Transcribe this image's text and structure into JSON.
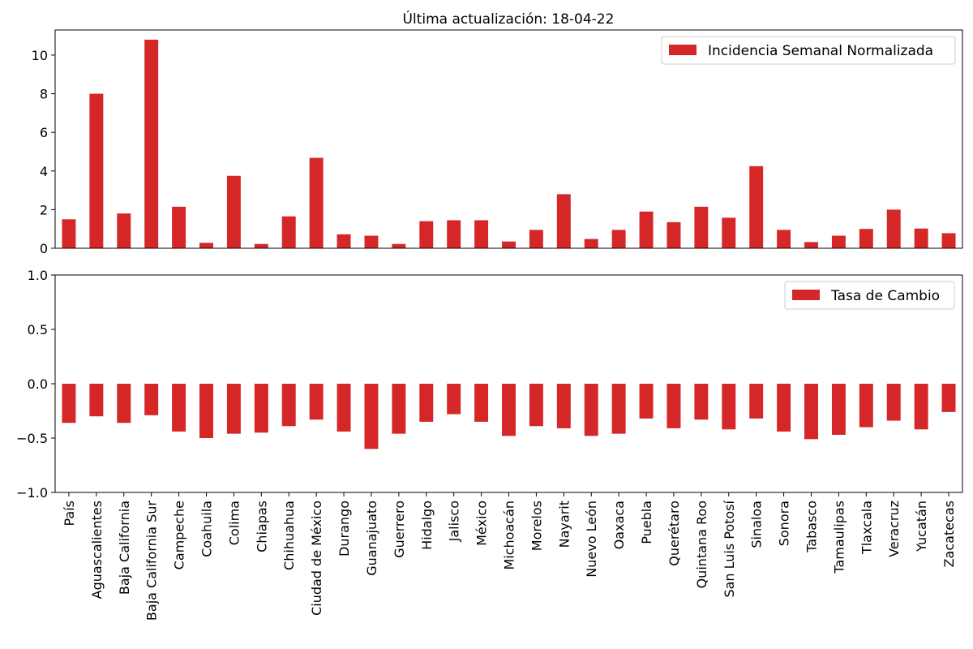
{
  "chart_data": [
    {
      "type": "bar",
      "title": "Última actualización: 18-04-22",
      "categories": [
        "País",
        "Aguascalientes",
        "Baja California",
        "Baja California Sur",
        "Campeche",
        "Coahuila",
        "Colima",
        "Chiapas",
        "Chihuahua",
        "Ciudad de México",
        "Durango",
        "Guanajuato",
        "Guerrero",
        "Hidalgo",
        "Jalisco",
        "México",
        "Michoacán",
        "Morelos",
        "Nayarit",
        "Nuevo León",
        "Oaxaca",
        "Puebla",
        "Querétaro",
        "Quintana Roo",
        "San Luis Potosí",
        "Sinaloa",
        "Sonora",
        "Tabasco",
        "Tamaulipas",
        "Tlaxcala",
        "Veracruz",
        "Yucatán",
        "Zacatecas"
      ],
      "series": [
        {
          "name": "Incidencia Semanal Normalizada",
          "values": [
            1.5,
            8.0,
            1.8,
            10.8,
            2.15,
            0.28,
            3.75,
            0.22,
            1.65,
            4.68,
            0.72,
            0.65,
            0.22,
            1.4,
            1.45,
            1.45,
            0.35,
            0.95,
            2.8,
            0.48,
            0.95,
            1.9,
            1.35,
            2.15,
            1.58,
            4.25,
            0.95,
            0.32,
            0.65,
            1.0,
            2.0,
            1.02,
            0.78
          ]
        }
      ],
      "ylim": [
        0,
        11.3
      ],
      "yticks": [
        0,
        2,
        4,
        6,
        8,
        10
      ],
      "ytick_labels": [
        "0",
        "2",
        "4",
        "6",
        "8",
        "10"
      ],
      "legend_position": "top-right",
      "grid": false,
      "color": "#d62728"
    },
    {
      "type": "bar",
      "categories": [
        "País",
        "Aguascalientes",
        "Baja California",
        "Baja California Sur",
        "Campeche",
        "Coahuila",
        "Colima",
        "Chiapas",
        "Chihuahua",
        "Ciudad de México",
        "Durango",
        "Guanajuato",
        "Guerrero",
        "Hidalgo",
        "Jalisco",
        "México",
        "Michoacán",
        "Morelos",
        "Nayarit",
        "Nuevo León",
        "Oaxaca",
        "Puebla",
        "Querétaro",
        "Quintana Roo",
        "San Luis Potosí",
        "Sinaloa",
        "Sonora",
        "Tabasco",
        "Tamaulipas",
        "Tlaxcala",
        "Veracruz",
        "Yucatán",
        "Zacatecas"
      ],
      "series": [
        {
          "name": "Tasa de Cambio",
          "values": [
            -0.36,
            -0.3,
            -0.36,
            -0.29,
            -0.44,
            -0.5,
            -0.46,
            -0.45,
            -0.39,
            -0.33,
            -0.44,
            -0.6,
            -0.46,
            -0.35,
            -0.28,
            -0.35,
            -0.48,
            -0.39,
            -0.41,
            -0.48,
            -0.46,
            -0.32,
            -0.41,
            -0.33,
            -0.42,
            -0.32,
            -0.44,
            -0.51,
            -0.47,
            -0.4,
            -0.34,
            -0.42,
            -0.26
          ]
        }
      ],
      "ylim": [
        -1.0,
        1.0
      ],
      "yticks": [
        -1.0,
        -0.5,
        0.0,
        0.5,
        1.0
      ],
      "ytick_labels": [
        "−1.0",
        "−0.5",
        "0.0",
        "0.5",
        "1.0"
      ],
      "legend_position": "top-right",
      "grid": false,
      "color": "#d62728"
    }
  ]
}
